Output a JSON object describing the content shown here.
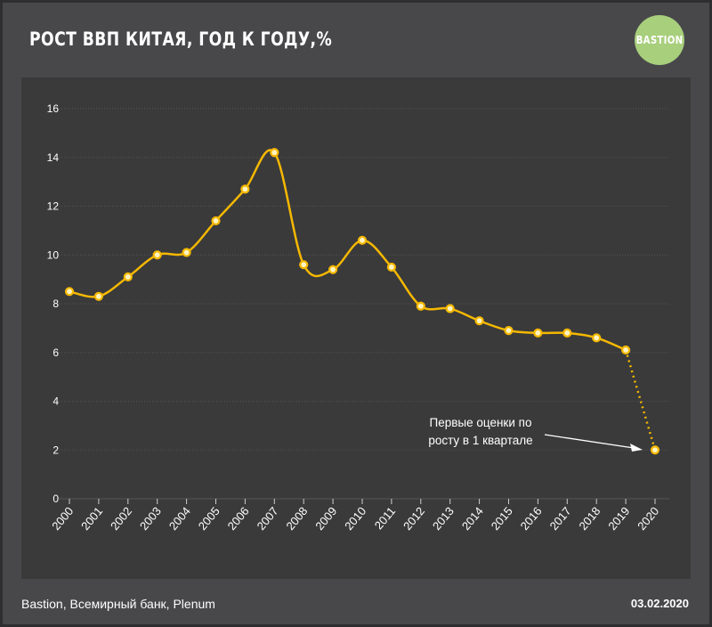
{
  "header": {
    "title": "РОСТ ВВП КИТАЯ, ГОД К ГОДУ,%",
    "logo_text": "BASTION",
    "logo_color": "#a8cf7c"
  },
  "footer": {
    "source": "Bastion, Всемирный банк, Plenum",
    "date": "03.02.2020"
  },
  "annotation": {
    "line1": "Первые оценки по",
    "line2": "росту в 1 квартале"
  },
  "chart_data": {
    "type": "line",
    "title": "РОСТ ВВП КИТАЯ, ГОД К ГОДУ,%",
    "xlabel": "",
    "ylabel": "",
    "ylim": [
      0,
      16
    ],
    "yticks": [
      0,
      2,
      4,
      6,
      8,
      10,
      12,
      14,
      16
    ],
    "grid": true,
    "line_color": "#f5b800",
    "categories": [
      "2000",
      "2001",
      "2002",
      "2003",
      "2004",
      "2005",
      "2006",
      "2007",
      "2008",
      "2009",
      "2010",
      "2011",
      "2012",
      "2013",
      "2014",
      "2015",
      "2016",
      "2017",
      "2018",
      "2019",
      "2020"
    ],
    "series": [
      {
        "values": [
          8.5,
          8.3,
          9.1,
          10.0,
          10.1,
          11.4,
          12.7,
          14.2,
          9.6,
          9.4,
          10.6,
          9.5,
          7.9,
          7.8,
          7.3,
          6.9,
          6.8,
          6.8,
          6.6,
          6.1,
          2.0
        ],
        "style": "solid-until-last-then-dotted"
      }
    ]
  }
}
